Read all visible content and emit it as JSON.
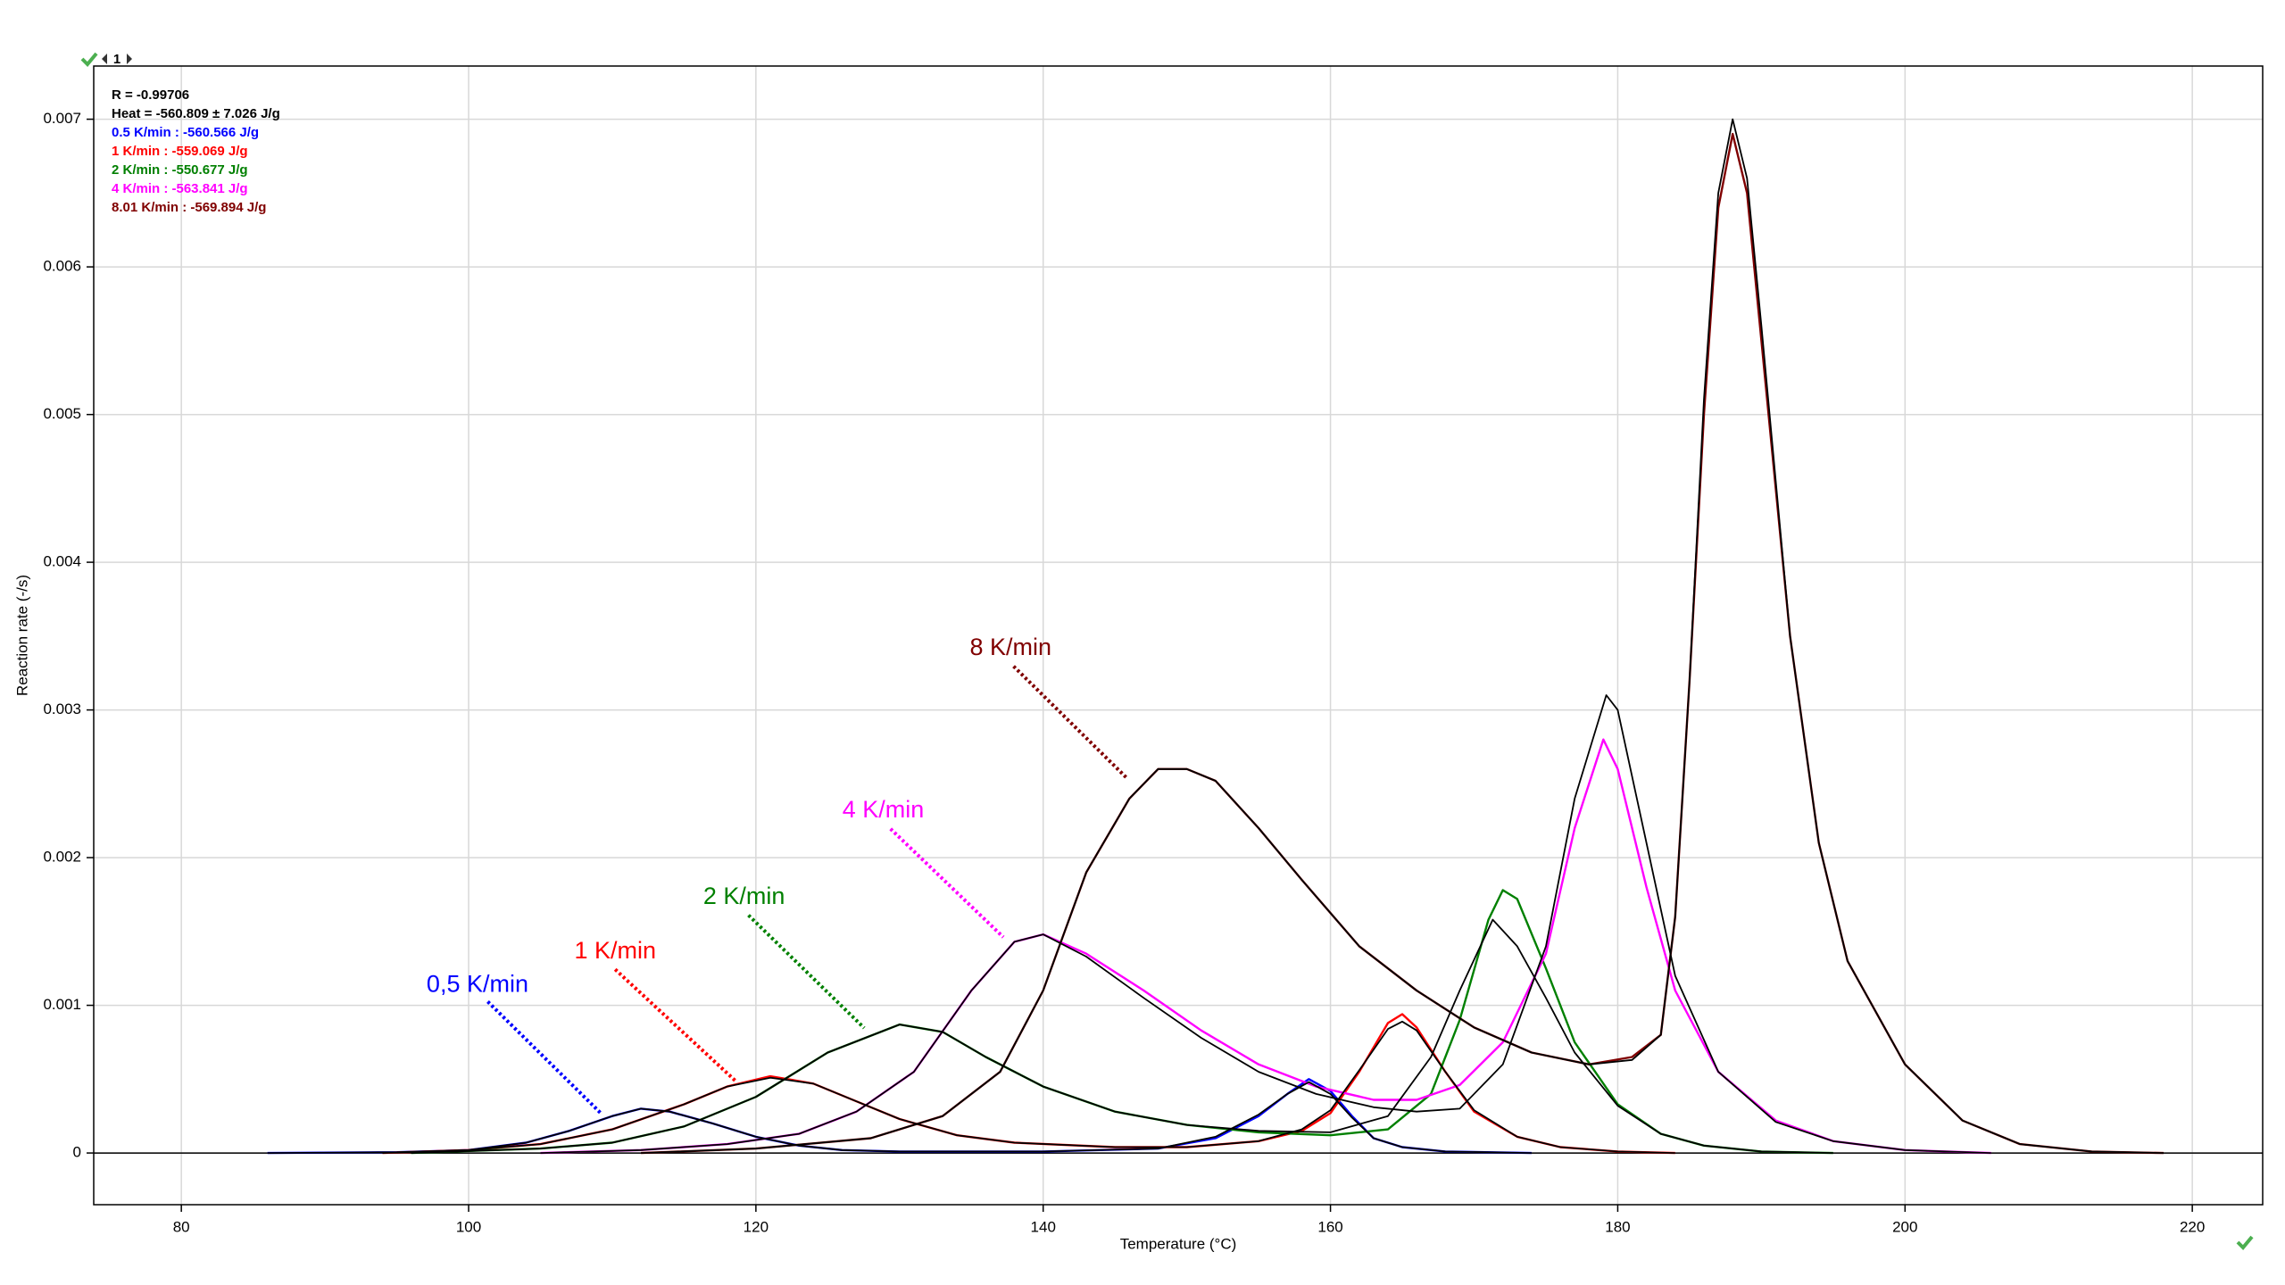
{
  "toolbar": {
    "page": "1"
  },
  "chart_data": {
    "type": "line",
    "x_label": "Temperature (°C)",
    "y_label": "Reaction rate (-/s)",
    "xlim": [
      73.9,
      224.9
    ],
    "ylim": [
      -0.00035,
      0.00736
    ],
    "xticks": [
      80,
      100,
      120,
      140,
      160,
      180,
      200,
      220
    ],
    "yticks": [
      0,
      0.001,
      0.002,
      0.003,
      0.004,
      0.005,
      0.006,
      0.007
    ],
    "grid": true,
    "legend": "top-left",
    "notes": [
      "R = -0.99706",
      "Heat = -560.809 ± 7.026 J/g"
    ],
    "labels": [
      {
        "text": "0,5 K/min",
        "color": "#0000ff"
      },
      {
        "text": "1 K/min",
        "color": "#ff0000"
      },
      {
        "text": "2 K/min",
        "color": "#008000"
      },
      {
        "text": "4 K/min",
        "color": "#ff00ff"
      },
      {
        "text": "8 K/min",
        "color": "#800000"
      }
    ],
    "series": [
      {
        "name": "0.5 K/min : -560.566 J/g",
        "color": "#0000ff",
        "x": [
          86,
          95,
          100,
          104,
          107,
          110,
          112,
          114,
          117,
          120,
          123,
          126,
          130,
          140,
          148,
          152,
          155,
          157,
          158.5,
          160,
          161.5,
          163,
          165,
          168,
          174
        ],
        "values": [
          0,
          5e-06,
          2e-05,
          7e-05,
          0.00015,
          0.00025,
          0.0003,
          0.00028,
          0.0002,
          0.00011,
          5e-05,
          2e-05,
          1e-05,
          1e-05,
          3e-05,
          0.0001,
          0.00025,
          0.0004,
          0.0005,
          0.00042,
          0.00025,
          0.0001,
          4e-05,
          1e-05,
          0
        ]
      },
      {
        "name": "1 K/min : -559.069 J/g",
        "color": "#ff0000",
        "x": [
          94,
          100,
          105,
          110,
          115,
          118,
          121,
          124,
          127,
          130,
          134,
          138,
          145,
          150,
          155,
          158,
          160,
          162,
          164,
          165,
          166,
          168,
          170,
          173,
          176,
          180,
          184
        ],
        "values": [
          0,
          2e-05,
          6e-05,
          0.00016,
          0.00033,
          0.00045,
          0.00052,
          0.00047,
          0.00035,
          0.00023,
          0.00012,
          7e-05,
          4e-05,
          4e-05,
          8e-05,
          0.00015,
          0.00027,
          0.00055,
          0.00088,
          0.00094,
          0.00085,
          0.00055,
          0.00028,
          0.00011,
          4e-05,
          1e-05,
          0
        ]
      },
      {
        "name": "2 K/min : -550.677 J/g",
        "color": "#008000",
        "x": [
          96,
          105,
          110,
          115,
          120,
          125,
          130,
          133,
          136,
          140,
          145,
          150,
          155,
          160,
          164,
          167,
          169,
          171,
          172,
          173,
          175,
          177,
          180,
          183,
          186,
          190,
          195
        ],
        "values": [
          0,
          3e-05,
          7e-05,
          0.00018,
          0.00038,
          0.00068,
          0.00087,
          0.00082,
          0.00065,
          0.00045,
          0.00028,
          0.00019,
          0.00014,
          0.00012,
          0.00016,
          0.0004,
          0.0009,
          0.00158,
          0.00178,
          0.00172,
          0.00125,
          0.00075,
          0.00033,
          0.00013,
          5e-05,
          1e-05,
          0
        ]
      },
      {
        "name": "4 K/min : -563.841 J/g",
        "color": "#ff00ff",
        "x": [
          105,
          112,
          118,
          123,
          127,
          131,
          135,
          138,
          140,
          143,
          147,
          151,
          155,
          159,
          163,
          166,
          169,
          172,
          175,
          177,
          179,
          180,
          182,
          184,
          187,
          191,
          195,
          200,
          206
        ],
        "values": [
          0,
          2e-05,
          6e-05,
          0.00013,
          0.00028,
          0.00055,
          0.0011,
          0.00143,
          0.00148,
          0.00135,
          0.0011,
          0.00083,
          0.0006,
          0.00045,
          0.00036,
          0.00036,
          0.00046,
          0.00075,
          0.00135,
          0.0022,
          0.0028,
          0.0026,
          0.0018,
          0.0011,
          0.00055,
          0.00022,
          8e-05,
          2e-05,
          0
        ]
      },
      {
        "name": "8.01 K/min : -569.894 J/g",
        "color": "#800000",
        "x": [
          112,
          120,
          128,
          133,
          137,
          140,
          143,
          146,
          148,
          150,
          152,
          155,
          158,
          162,
          166,
          170,
          174,
          178,
          181,
          183,
          184,
          185,
          186,
          187,
          188,
          189,
          190,
          192,
          194,
          196,
          200,
          204,
          208,
          213,
          218
        ],
        "values": [
          0,
          3e-05,
          0.0001,
          0.00025,
          0.00055,
          0.0011,
          0.0019,
          0.0024,
          0.0026,
          0.0026,
          0.00252,
          0.0022,
          0.00185,
          0.0014,
          0.0011,
          0.00085,
          0.00068,
          0.0006,
          0.00065,
          0.0008,
          0.0016,
          0.0032,
          0.005,
          0.0064,
          0.0069,
          0.0065,
          0.0055,
          0.0035,
          0.0021,
          0.0013,
          0.0006,
          0.00022,
          6e-05,
          1e-05,
          0
        ]
      },
      {
        "color": "#000000",
        "x": [
          86,
          95,
          100,
          104,
          107,
          110,
          112,
          114,
          117,
          120,
          123,
          126,
          130,
          140,
          148,
          152,
          155,
          157,
          158.5,
          160,
          161.5,
          163,
          165,
          168,
          174
        ],
        "values": [
          0,
          5e-06,
          2e-05,
          7e-05,
          0.00015,
          0.00025,
          0.0003,
          0.00028,
          0.0002,
          0.00011,
          5e-05,
          2e-05,
          1e-05,
          1e-05,
          3e-05,
          0.00011,
          0.00026,
          0.0004,
          0.00048,
          0.0004,
          0.00024,
          0.0001,
          4e-05,
          1e-05,
          0
        ]
      },
      {
        "color": "#000000",
        "x": [
          94,
          100,
          105,
          110,
          115,
          118,
          121,
          124,
          127,
          130,
          134,
          138,
          145,
          150,
          155,
          158,
          160,
          162,
          164,
          165,
          166,
          168,
          170,
          173,
          176,
          180,
          184
        ],
        "values": [
          0,
          2e-05,
          6e-05,
          0.00016,
          0.00033,
          0.00045,
          0.00051,
          0.00047,
          0.00035,
          0.00023,
          0.00012,
          7e-05,
          4e-05,
          4e-05,
          8e-05,
          0.00016,
          0.00029,
          0.00056,
          0.00084,
          0.00089,
          0.00083,
          0.00055,
          0.00029,
          0.00011,
          4e-05,
          1e-05,
          0
        ]
      },
      {
        "color": "#000000",
        "x": [
          96,
          105,
          110,
          115,
          120,
          125,
          130,
          133,
          136,
          140,
          145,
          150,
          155,
          160,
          164,
          167,
          169,
          171.3,
          173,
          175,
          177,
          180,
          183,
          186,
          190,
          195
        ],
        "values": [
          0,
          3e-05,
          7e-05,
          0.00018,
          0.00038,
          0.00068,
          0.00087,
          0.00082,
          0.00065,
          0.00045,
          0.00028,
          0.00019,
          0.00015,
          0.00014,
          0.00025,
          0.00065,
          0.0011,
          0.00158,
          0.0014,
          0.00105,
          0.00068,
          0.00032,
          0.00013,
          5e-05,
          1e-05,
          0
        ]
      },
      {
        "color": "#000000",
        "x": [
          105,
          112,
          118,
          123,
          127,
          131,
          135,
          138,
          140,
          143,
          147,
          151,
          155,
          159,
          163,
          166,
          169,
          172,
          175,
          177,
          179.2,
          180,
          182,
          184,
          187,
          191,
          195,
          200,
          206
        ],
        "values": [
          0,
          2e-05,
          6e-05,
          0.00013,
          0.00028,
          0.00055,
          0.0011,
          0.00143,
          0.00148,
          0.00133,
          0.00105,
          0.00078,
          0.00055,
          0.0004,
          0.00031,
          0.00028,
          0.0003,
          0.0006,
          0.0014,
          0.0024,
          0.0031,
          0.003,
          0.0021,
          0.0012,
          0.00055,
          0.00021,
          8e-05,
          2e-05,
          0
        ]
      },
      {
        "color": "#000000",
        "x": [
          112,
          120,
          128,
          133,
          137,
          140,
          143,
          146,
          148,
          150,
          152,
          155,
          158,
          162,
          166,
          170,
          174,
          178,
          181,
          183,
          184,
          185,
          186,
          187,
          188,
          189,
          190,
          192,
          194,
          196,
          200,
          204,
          208,
          213,
          218
        ],
        "values": [
          0,
          3e-05,
          0.0001,
          0.00025,
          0.00055,
          0.0011,
          0.0019,
          0.0024,
          0.0026,
          0.0026,
          0.00252,
          0.0022,
          0.00185,
          0.0014,
          0.0011,
          0.00085,
          0.00068,
          0.0006,
          0.00063,
          0.0008,
          0.0016,
          0.0032,
          0.0051,
          0.0065,
          0.007,
          0.0066,
          0.0056,
          0.0035,
          0.0021,
          0.0013,
          0.0006,
          0.00022,
          6e-05,
          1e-05,
          0
        ]
      }
    ]
  }
}
